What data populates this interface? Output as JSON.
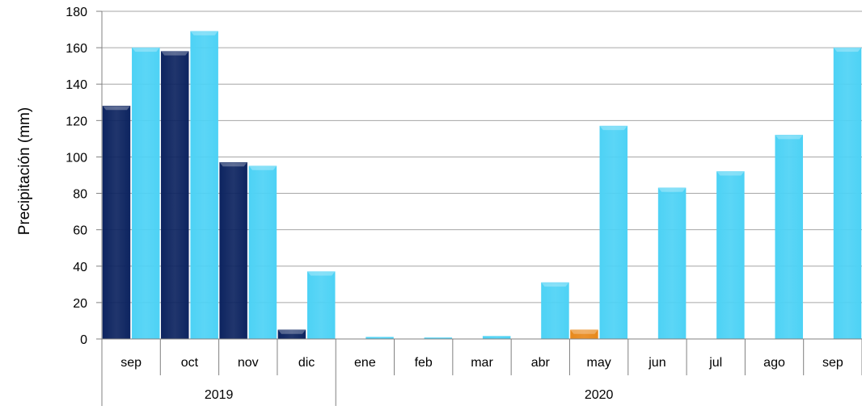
{
  "chart_data": {
    "type": "bar",
    "title": "",
    "xlabel": "",
    "ylabel": "Precipitación (mm)",
    "ylim": [
      0,
      180
    ],
    "yticks": [
      0,
      20,
      40,
      60,
      80,
      100,
      120,
      140,
      160,
      180
    ],
    "grid": true,
    "legend": "none",
    "categories": [
      "sep",
      "oct",
      "nov",
      "dic",
      "ene",
      "feb",
      "mar",
      "abr",
      "may",
      "jun",
      "jul",
      "ago",
      "sep"
    ],
    "groups": [
      {
        "label": "2019",
        "start": 0,
        "count": 4
      },
      {
        "label": "2020",
        "start": 4,
        "count": 9
      }
    ],
    "series": [
      {
        "values": [
          128,
          158,
          97,
          5,
          null,
          null,
          null,
          null,
          null,
          null,
          null,
          null,
          null
        ],
        "color": "#0d2460"
      },
      {
        "values": [
          null,
          null,
          null,
          null,
          null,
          null,
          null,
          null,
          5,
          null,
          null,
          null,
          null
        ],
        "color": "#e8891c"
      },
      {
        "values": [
          160,
          169,
          95,
          37,
          1,
          0.5,
          1.5,
          31,
          117,
          83,
          92,
          112,
          160
        ],
        "color": "#4dd2f5"
      }
    ]
  }
}
